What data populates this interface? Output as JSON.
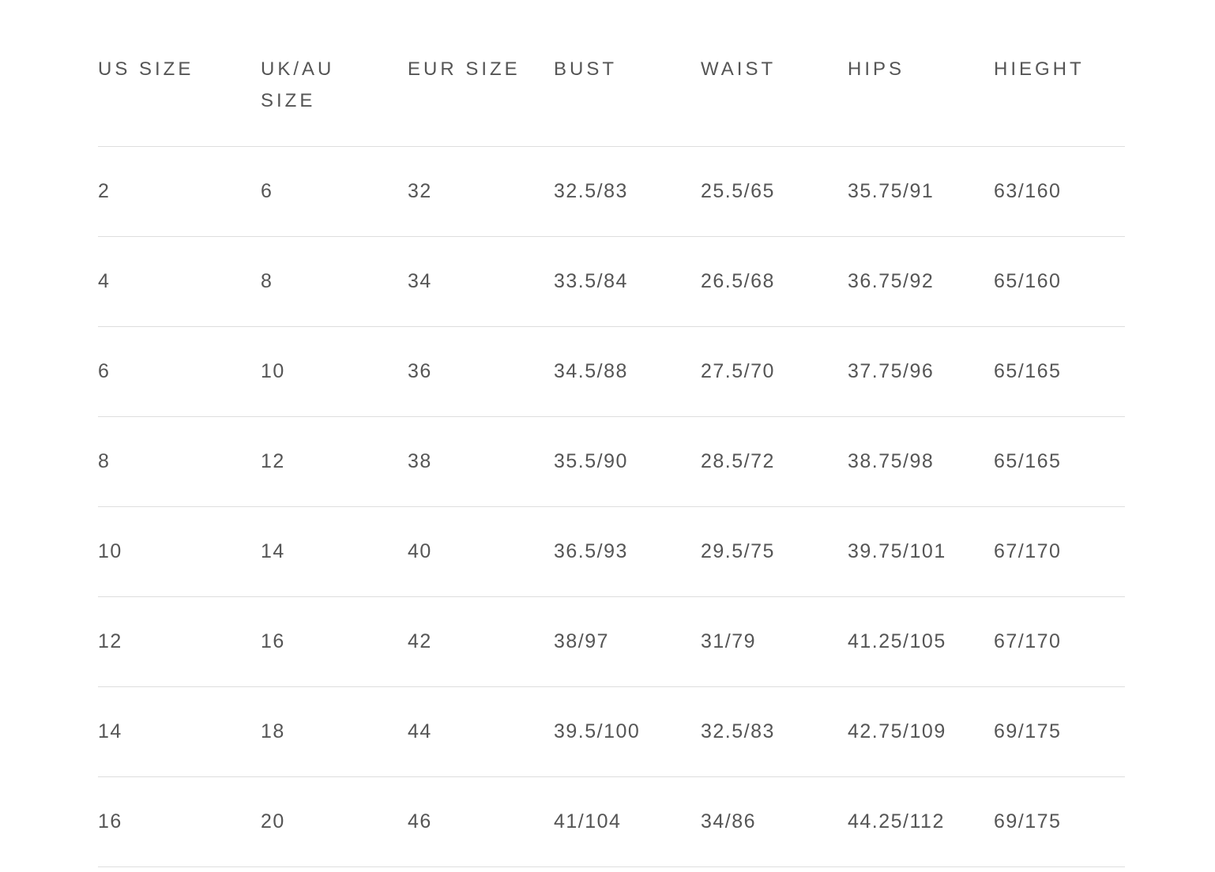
{
  "table": {
    "headers": [
      "US SIZE",
      "UK/AU SIZE",
      "EUR SIZE",
      "BUST",
      "WAIST",
      "HIPS",
      "HIEGHT"
    ],
    "rows": [
      [
        "2",
        "6",
        "32",
        "32.5/83",
        "25.5/65",
        "35.75/91",
        "63/160"
      ],
      [
        "4",
        "8",
        "34",
        "33.5/84",
        "26.5/68",
        "36.75/92",
        "65/160"
      ],
      [
        "6",
        "10",
        "36",
        "34.5/88",
        "27.5/70",
        "37.75/96",
        "65/165"
      ],
      [
        "8",
        "12",
        "38",
        "35.5/90",
        "28.5/72",
        "38.75/98",
        "65/165"
      ],
      [
        "10",
        "14",
        "40",
        "36.5/93",
        "29.5/75",
        "39.75/101",
        "67/170"
      ],
      [
        "12",
        "16",
        "42",
        "38/97",
        "31/79",
        "41.25/105",
        "67/170"
      ],
      [
        "14",
        "18",
        "44",
        "39.5/100",
        "32.5/83",
        "42.75/109",
        "69/175"
      ],
      [
        "16",
        "20",
        "46",
        "41/104",
        "34/86",
        "44.25/112",
        "69/175"
      ]
    ]
  }
}
